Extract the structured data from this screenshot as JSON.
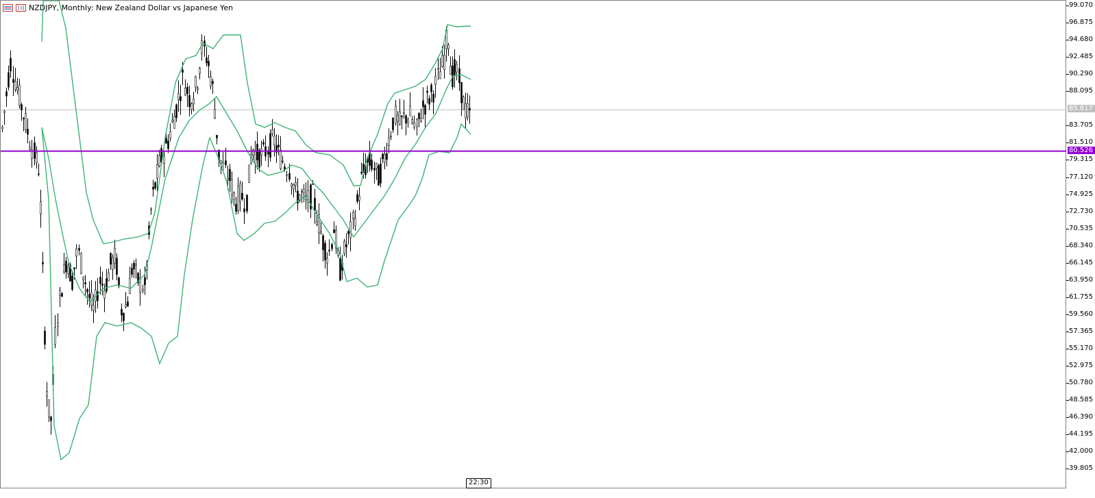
{
  "window": {
    "symbol_title": "NZDJPY, Monthly:  New Zealand Dollar vs Japanese Yen"
  },
  "price_scale": {
    "labels": [
      "99.070",
      "96.875",
      "94.680",
      "92.485",
      "90.290",
      "88.095",
      "83.705",
      "81.510",
      "79.315",
      "77.120",
      "74.925",
      "72.730",
      "70.535",
      "68.340",
      "66.145",
      "63.950",
      "61.755",
      "59.560",
      "57.365",
      "55.170",
      "52.975",
      "50.780",
      "48.585",
      "46.390",
      "44.195",
      "42.000",
      "39.805"
    ],
    "values": [
      99.07,
      96.875,
      94.68,
      92.485,
      90.29,
      88.095,
      83.705,
      81.51,
      79.315,
      77.12,
      74.925,
      72.73,
      70.535,
      68.34,
      66.145,
      63.95,
      61.755,
      59.56,
      57.365,
      55.17,
      52.975,
      50.78,
      48.585,
      46.39,
      44.195,
      42.0,
      39.805
    ]
  },
  "bid_line": {
    "label": "85.817",
    "value": 85.817,
    "color": "#c0c0c0"
  },
  "horizontal_line": {
    "label": "80.526",
    "value": 80.526,
    "color": "#9400d3"
  },
  "time_marker": {
    "label": "22:30"
  },
  "colors": {
    "bollinger": "#3cb371",
    "candle": "#000000",
    "accent": "#9400d3"
  }
}
